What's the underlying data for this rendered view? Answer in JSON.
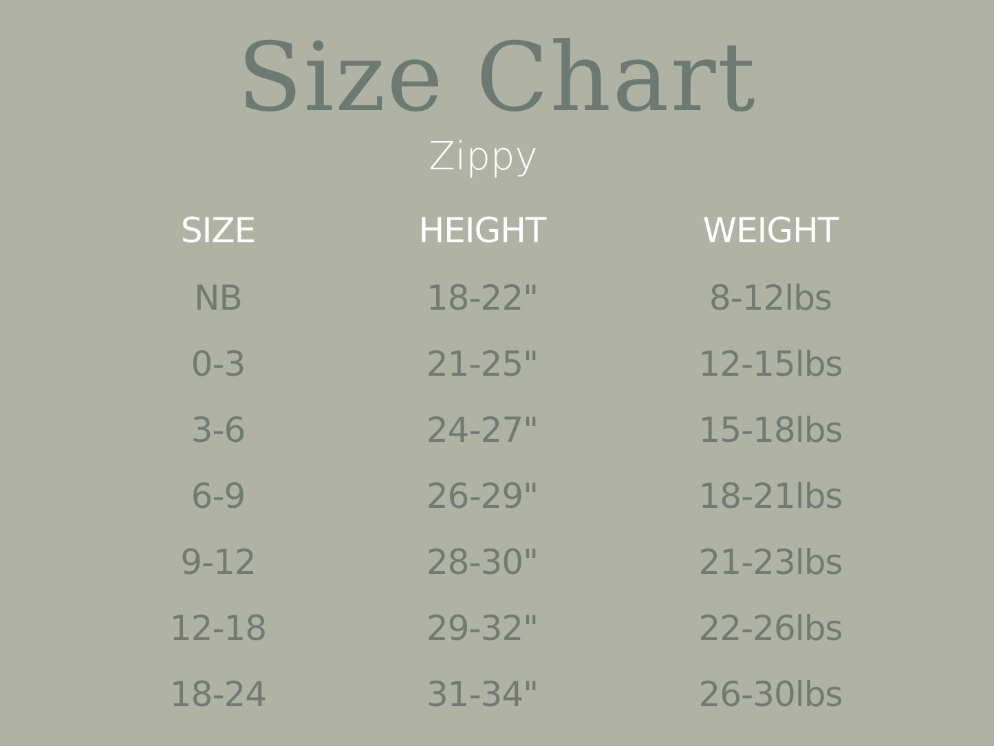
{
  "title": "Size Chart",
  "subtitle": "Zippy",
  "colors": {
    "background": "#b0b3a3",
    "title": "#6d7a74",
    "header": "#ffffff",
    "values": "#727b73"
  },
  "table": {
    "headers": [
      "SIZE",
      "HEIGHT",
      "WEIGHT"
    ],
    "rows": [
      [
        "NB",
        "18-22\"",
        "8-12lbs"
      ],
      [
        "0-3",
        "21-25\"",
        "12-15lbs"
      ],
      [
        "3-6",
        "24-27\"",
        "15-18lbs"
      ],
      [
        "6-9",
        "26-29\"",
        "18-21lbs"
      ],
      [
        "9-12",
        "28-30\"",
        "21-23lbs"
      ],
      [
        "12-18",
        "29-32\"",
        "22-26lbs"
      ],
      [
        "18-24",
        "31-34\"",
        "26-30lbs"
      ]
    ]
  }
}
